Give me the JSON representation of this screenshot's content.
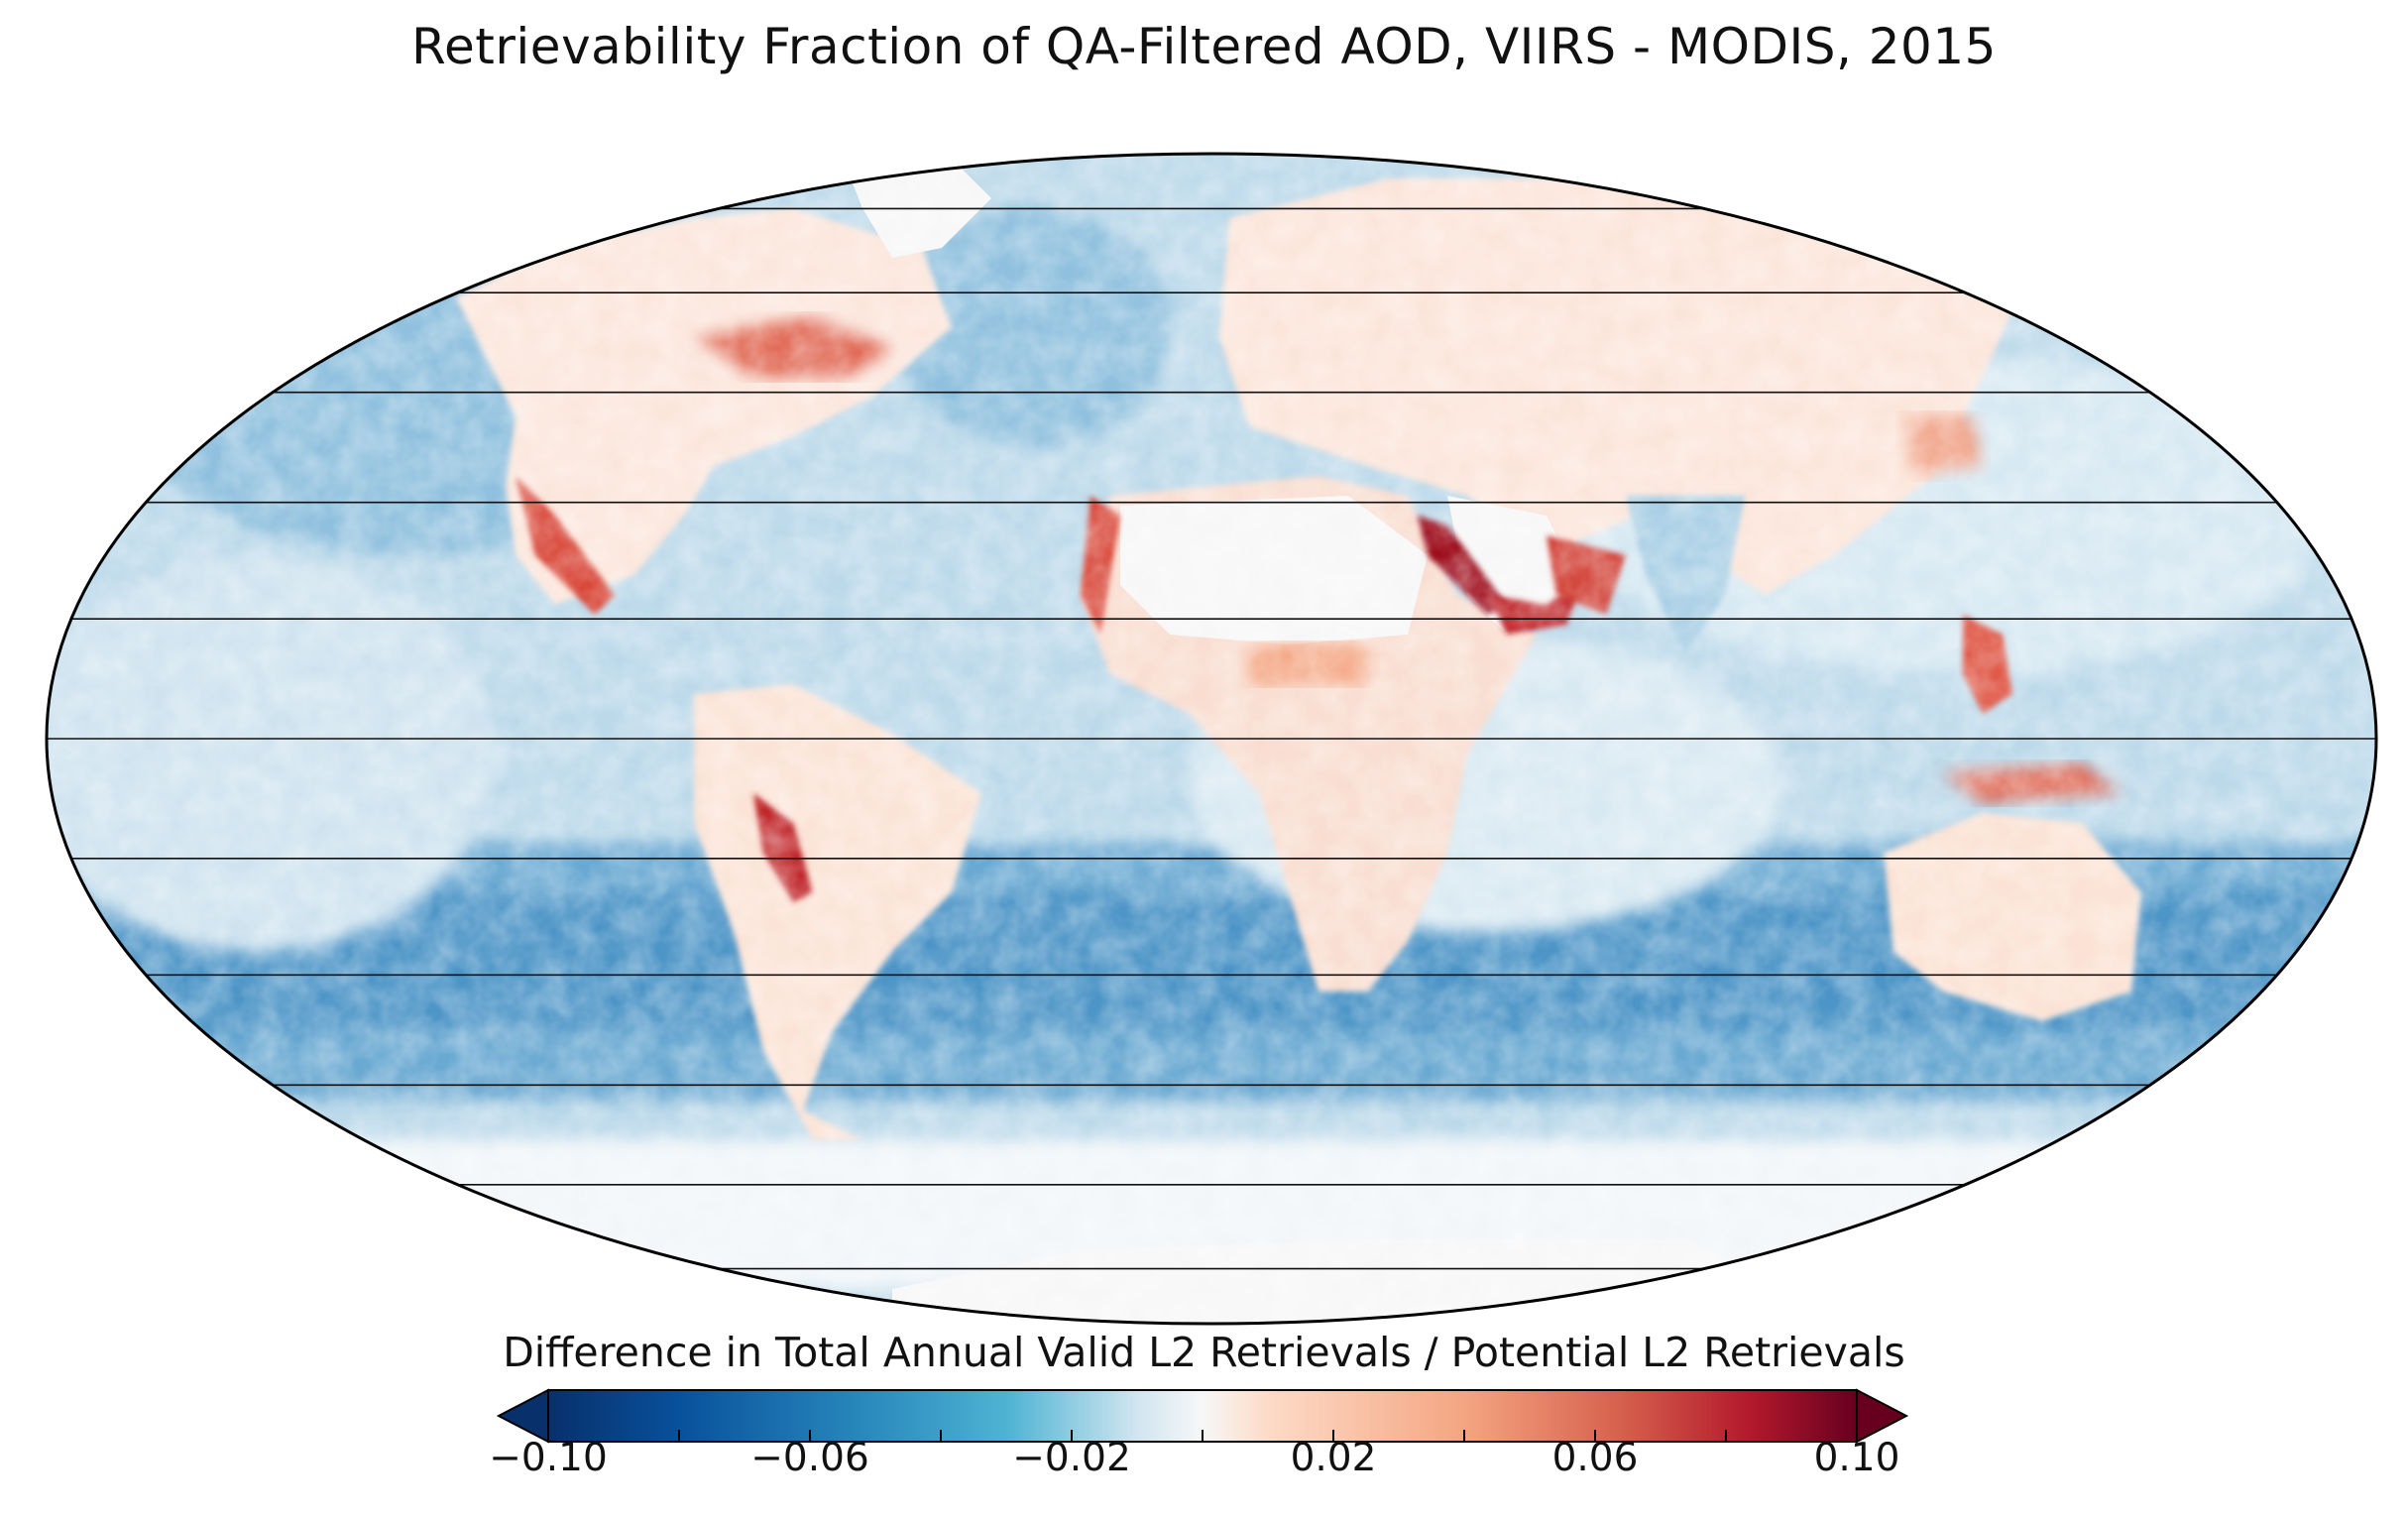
{
  "title": "Retrievability Fraction of QA-Filtered AOD, VIIRS - MODIS, 2015",
  "projection": "mollweide",
  "colorbar": {
    "label": "Difference in Total Annual Valid L2 Retrievals / Potential L2 Retrievals",
    "min": -0.1,
    "max": 0.1,
    "extend": "both",
    "colormap": "RdBu_r",
    "tick_labels": [
      "−0.10",
      "−0.06",
      "−0.02",
      "0.02",
      "0.06",
      "0.10"
    ],
    "tick_values": [
      -0.1,
      -0.06,
      -0.02,
      0.02,
      0.06,
      0.1
    ],
    "colors": {
      "min": "#08306b",
      "low": "#2171b5",
      "mid_low": "#9ecae1",
      "zero": "#f7f7f7",
      "mid_high": "#fcae91",
      "high": "#ef3b2c",
      "max": "#67000d"
    }
  },
  "legend_icons": [
    "arrow-left-extend-icon",
    "arrow-right-extend-icon"
  ]
}
